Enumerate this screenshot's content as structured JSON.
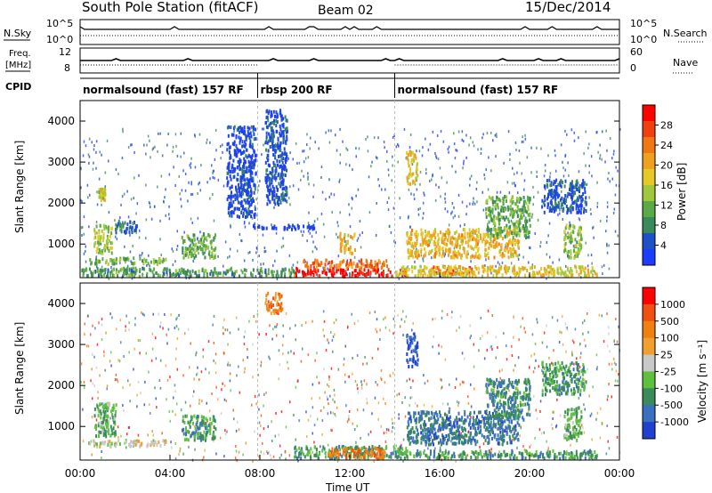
{
  "header": {
    "title": "South Pole Station (fitACF)",
    "beam": "Beam 02",
    "date": "15/Dec/2014"
  },
  "top_panel": {
    "left_label_1": "N.Sky",
    "left_tick_hi_1": "10^5",
    "left_tick_lo_1": "10^0",
    "right_label_1": "N.Search",
    "right_tick_hi_1": "10^5",
    "right_tick_lo_1": "10^0",
    "left_label_2a": "Freq.",
    "left_label_2b": "[MHz]",
    "left_tick_hi_2": "12",
    "left_tick_lo_2": "8",
    "right_label_2": "Nave",
    "right_tick_hi_2": "60",
    "right_tick_lo_2": "0",
    "cpid_label": "CPID",
    "modes": [
      {
        "label": "normalsound (fast) 157 RF",
        "start_h": 0.0,
        "end_h": 7.9
      },
      {
        "label": "rbsp 200 RF",
        "start_h": 7.9,
        "end_h": 14.0
      },
      {
        "label": "normalsound (fast) 157 RF",
        "start_h": 14.0,
        "end_h": 24.0
      }
    ]
  },
  "chart_data": [
    {
      "type": "heatmap",
      "name": "power",
      "ylabel": "Slant Range [km]",
      "ylim": [
        180,
        4500
      ],
      "yticks": [
        1000,
        2000,
        3000,
        4000
      ],
      "xlim_hours": [
        0,
        24
      ],
      "colorbar": {
        "label": "Power [dB]",
        "range": [
          0,
          32
        ],
        "ticks": [
          "4",
          "8",
          "12",
          "16",
          "20",
          "24",
          "28"
        ],
        "colors": [
          "#1e3cff",
          "#1e50c8",
          "#3a8a5a",
          "#5aaa46",
          "#a0c83c",
          "#e6c828",
          "#f0a020",
          "#f07814",
          "#f04010",
          "#ff0000"
        ]
      },
      "regions": [
        {
          "t0": 0.3,
          "t1": 3.8,
          "r0": 550,
          "r1": 700,
          "level": 0.4
        },
        {
          "t0": 0.6,
          "t1": 1.4,
          "r0": 800,
          "r1": 1500,
          "level": 0.45
        },
        {
          "t0": 0.8,
          "t1": 1.1,
          "r0": 2100,
          "r1": 2400,
          "level": 0.5
        },
        {
          "t0": 1.5,
          "t1": 2.5,
          "r0": 1300,
          "r1": 1600,
          "level": 0.2
        },
        {
          "t0": 4.5,
          "t1": 6.0,
          "r0": 700,
          "r1": 1300,
          "level": 0.35
        },
        {
          "t0": 6.5,
          "t1": 7.8,
          "r0": 1700,
          "r1": 3900,
          "level": 0.1
        },
        {
          "t0": 8.2,
          "t1": 9.2,
          "r0": 2000,
          "r1": 4300,
          "level": 0.12
        },
        {
          "t0": 7.5,
          "t1": 10.5,
          "r0": 1400,
          "r1": 1500,
          "level": 0.05
        },
        {
          "t0": 9.5,
          "t1": 14.5,
          "r0": 250,
          "r1": 450,
          "level": 0.95
        },
        {
          "t0": 9.8,
          "t1": 13.8,
          "r0": 450,
          "r1": 650,
          "level": 0.75
        },
        {
          "t0": 11.5,
          "t1": 12.2,
          "r0": 800,
          "r1": 1300,
          "level": 0.6
        },
        {
          "t0": 14.5,
          "t1": 15.0,
          "r0": 2500,
          "r1": 3300,
          "level": 0.55
        },
        {
          "t0": 14.5,
          "t1": 19.5,
          "r0": 700,
          "r1": 1400,
          "level": 0.6
        },
        {
          "t0": 15.5,
          "t1": 17.5,
          "r0": 300,
          "r1": 500,
          "level": 0.8
        },
        {
          "t0": 18.0,
          "t1": 20.0,
          "r0": 1200,
          "r1": 2200,
          "level": 0.35
        },
        {
          "t0": 20.5,
          "t1": 22.5,
          "r0": 1800,
          "r1": 2600,
          "level": 0.15
        },
        {
          "t0": 21.5,
          "t1": 22.3,
          "r0": 700,
          "r1": 1500,
          "level": 0.4
        },
        {
          "t0": 14.0,
          "t1": 23.0,
          "r0": 250,
          "r1": 500,
          "level": 0.55
        },
        {
          "t0": 0.0,
          "t1": 9.5,
          "r0": 250,
          "r1": 450,
          "level": 0.3
        }
      ]
    },
    {
      "type": "heatmap",
      "name": "velocity",
      "ylabel": "Slant Range [km]",
      "ylim": [
        180,
        4500
      ],
      "yticks": [
        1000,
        2000,
        3000,
        4000
      ],
      "xlim_hours": [
        0,
        24
      ],
      "xticks": [
        "00:00",
        "04:00",
        "08:00",
        "12:00",
        "16:00",
        "20:00",
        "00:00"
      ],
      "xlabel": "Time UT",
      "colorbar": {
        "label": "Velocity [m s⁻¹]",
        "ticks": [
          "1000",
          "500",
          "100",
          "25",
          "-25",
          "-100",
          "-500",
          "-1000"
        ],
        "colors": [
          "#2040d0",
          "#3a70c0",
          "#3a8a5a",
          "#5fbf3f",
          "#c8c8c8",
          "#f0a030",
          "#f08010",
          "#f05010",
          "#ff0000"
        ]
      },
      "regions": [
        {
          "t0": 0.3,
          "t1": 3.8,
          "r0": 550,
          "r1": 700,
          "level": 0.5
        },
        {
          "t0": 0.6,
          "t1": 1.6,
          "r0": 800,
          "r1": 1600,
          "level": 0.35
        },
        {
          "t0": 4.5,
          "t1": 6.0,
          "r0": 700,
          "r1": 1300,
          "level": 0.3
        },
        {
          "t0": 8.2,
          "t1": 9.0,
          "r0": 3800,
          "r1": 4300,
          "level": 0.7
        },
        {
          "t0": 9.5,
          "t1": 14.5,
          "r0": 250,
          "r1": 550,
          "level": 0.3
        },
        {
          "t0": 11.0,
          "t1": 13.5,
          "r0": 250,
          "r1": 500,
          "level": 0.75
        },
        {
          "t0": 14.5,
          "t1": 15.0,
          "r0": 2500,
          "r1": 3300,
          "level": 0.1
        },
        {
          "t0": 14.5,
          "t1": 19.5,
          "r0": 600,
          "r1": 1400,
          "level": 0.2
        },
        {
          "t0": 18.0,
          "t1": 20.0,
          "r0": 1200,
          "r1": 2200,
          "level": 0.25
        },
        {
          "t0": 20.5,
          "t1": 22.5,
          "r0": 1800,
          "r1": 2600,
          "level": 0.3
        },
        {
          "t0": 21.5,
          "t1": 22.3,
          "r0": 700,
          "r1": 1500,
          "level": 0.35
        },
        {
          "t0": 14.0,
          "t1": 23.0,
          "r0": 250,
          "r1": 450,
          "level": 0.3
        }
      ]
    }
  ]
}
